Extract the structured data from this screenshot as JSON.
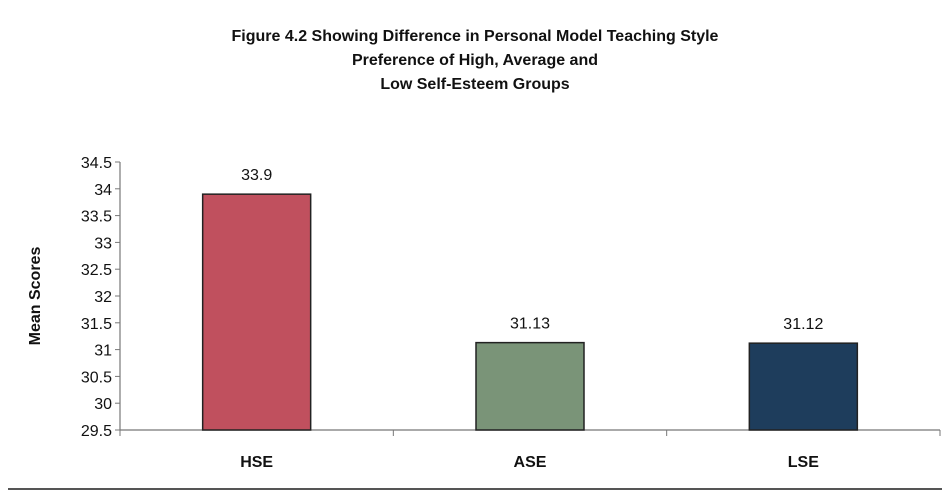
{
  "chart_data": {
    "type": "bar",
    "title_lines": [
      "Figure 4.2 Showing Difference in Personal Model Teaching Style",
      "Preference of High, Average and",
      "Low Self-Esteem Groups"
    ],
    "xlabel": "",
    "ylabel": "Mean Scores",
    "categories": [
      "HSE",
      "ASE",
      "LSE"
    ],
    "values": [
      33.9,
      31.13,
      31.12
    ],
    "data_labels": [
      "33.9",
      "31.13",
      "31.12"
    ],
    "bar_colors": [
      "#c0505e",
      "#7a9478",
      "#1e3d5c"
    ],
    "ylim": [
      29.5,
      34.5
    ],
    "yticks": [
      29.5,
      30,
      30.5,
      31,
      31.5,
      32,
      32.5,
      33,
      33.5,
      34,
      34.5
    ],
    "ytick_labels": [
      "29.5",
      "30",
      "30.5",
      "31",
      "31.5",
      "32",
      "32.5",
      "33",
      "33.5",
      "34",
      "34.5"
    ],
    "grid": false,
    "legend": "none"
  }
}
